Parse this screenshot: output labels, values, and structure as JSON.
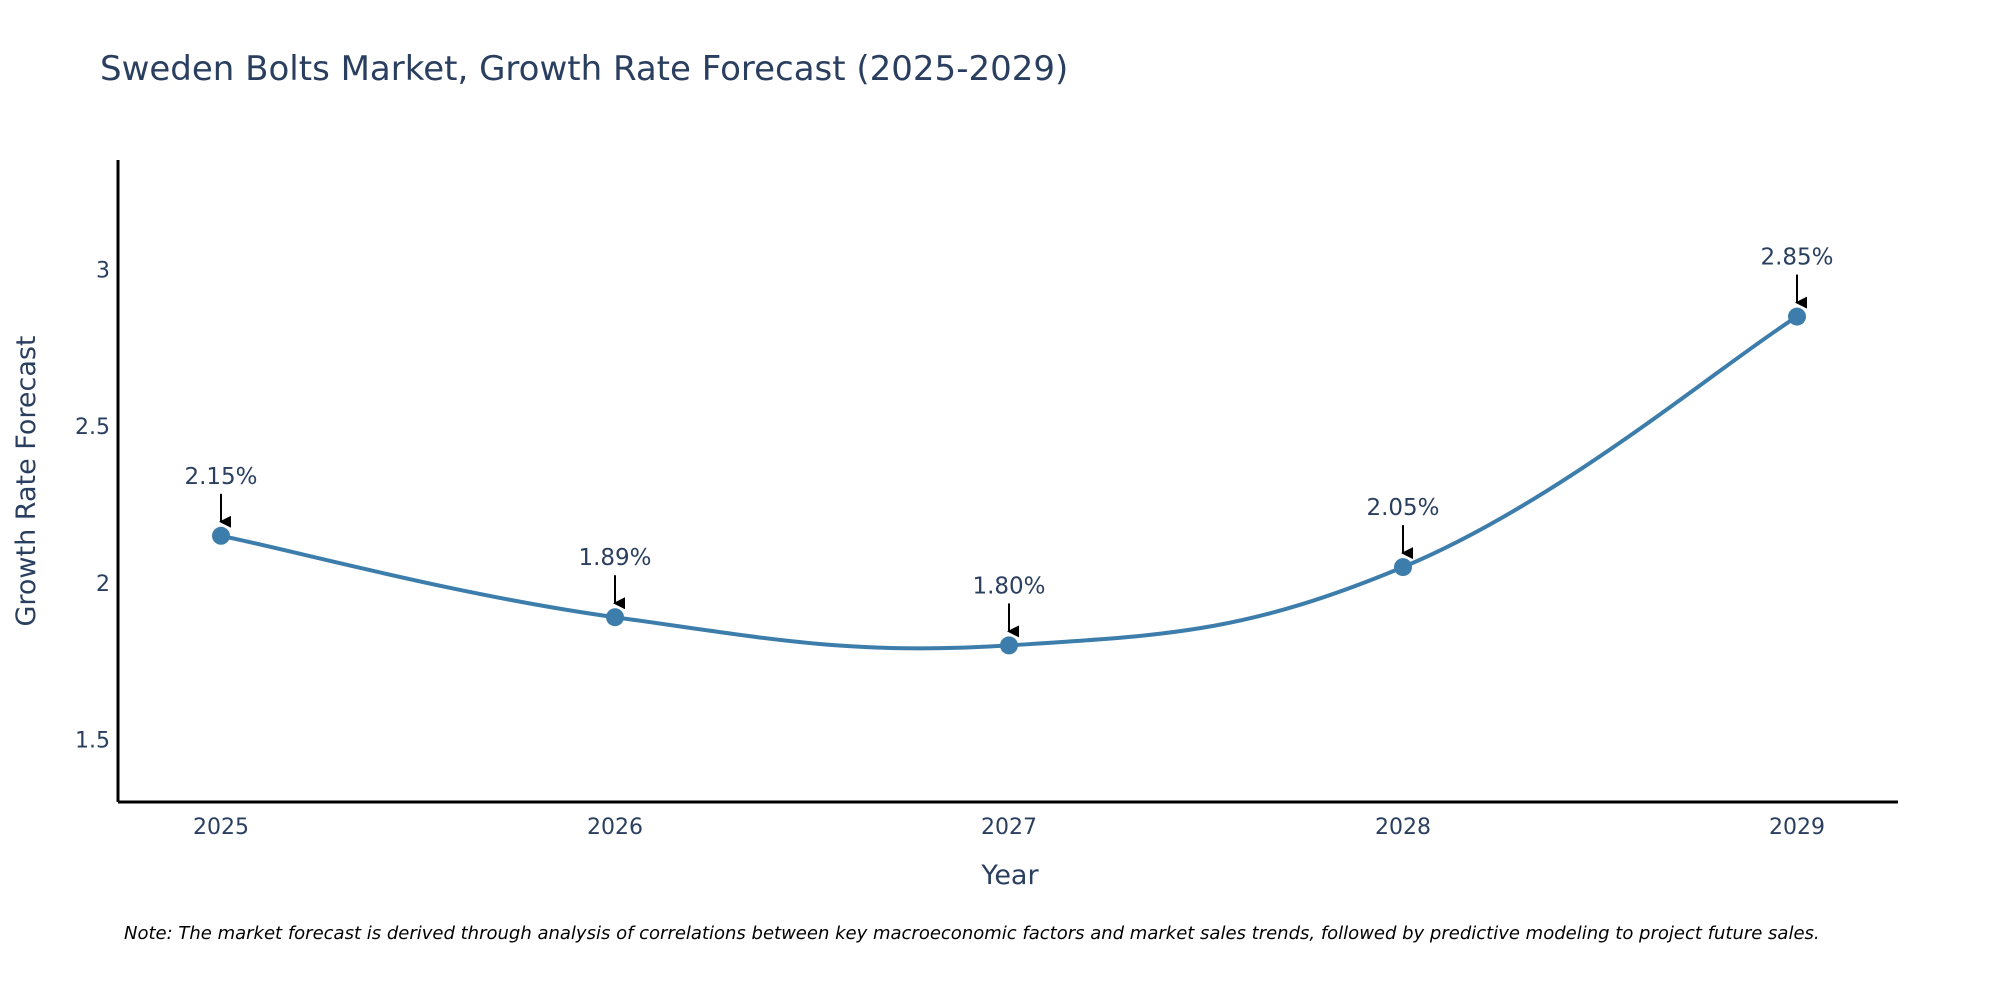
{
  "chart_data": {
    "type": "line",
    "title": "Sweden Bolts Market, Growth Rate Forecast (2025-2029)",
    "xlabel": "Year",
    "ylabel": "Growth Rate Forecast",
    "categories": [
      "2025",
      "2026",
      "2027",
      "2028",
      "2029"
    ],
    "series": [
      {
        "name": "Growth Rate Forecast",
        "values": [
          2.15,
          1.89,
          1.8,
          2.05,
          2.85
        ],
        "labels": [
          "2.15%",
          "1.89%",
          "1.80%",
          "2.05%",
          "2.85%"
        ]
      }
    ],
    "yticks": [
      1.5,
      2,
      2.5,
      3
    ],
    "ytick_labels": [
      "1.5",
      "2",
      "2.5",
      "3"
    ],
    "ylim": [
      1.3,
      3.35
    ],
    "grid": false,
    "line_color": "#3d7dab",
    "marker_color": "#3d7dab",
    "annotation_arrow_color": "#000000",
    "note": "Note: The market forecast is derived through analysis of correlations between key macroeconomic factors and market sales trends, followed by predictive modeling to project future sales."
  }
}
